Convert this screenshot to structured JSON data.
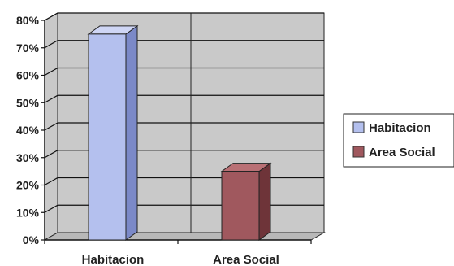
{
  "chart_data": {
    "type": "bar",
    "title": "",
    "xlabel": "",
    "ylabel": "",
    "categories": [
      "Habitacion",
      "Area Social"
    ],
    "values": [
      0.75,
      0.25
    ],
    "ylim": [
      0,
      0.8
    ],
    "yticks": [
      0,
      0.1,
      0.2,
      0.3,
      0.4,
      0.5,
      0.6,
      0.7,
      0.8
    ],
    "ytick_labels": [
      "0%",
      "10%",
      "20%",
      "30%",
      "40%",
      "50%",
      "60%",
      "70%",
      "80%"
    ],
    "grid": true,
    "legend_position": "right",
    "legend": [
      "Habitacion",
      "Area Social"
    ],
    "colors": {
      "Habitacion": {
        "front": "#b4c0ee",
        "side": "#7b89c8",
        "top": "#cfd6f5"
      },
      "Area Social": {
        "front": "#a0585e",
        "side": "#6e3439",
        "top": "#b97075"
      },
      "wall": "#c9c9c9",
      "floor": "#b8b8b8",
      "grid": "#111111"
    }
  }
}
